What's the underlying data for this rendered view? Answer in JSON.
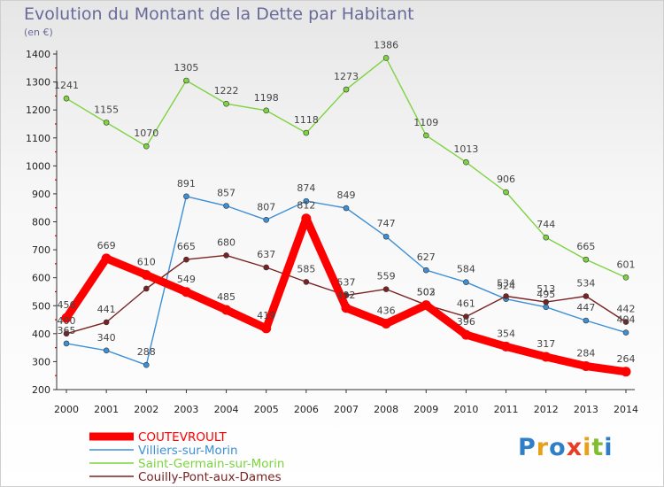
{
  "chart_data": {
    "type": "line",
    "title": "Evolution du Montant de la Dette par Habitant",
    "subtitle": "(en €)",
    "x": [
      "2000",
      "2001",
      "2002",
      "2003",
      "2004",
      "2005",
      "2006",
      "2007",
      "2008",
      "2009",
      "2010",
      "2011",
      "2012",
      "2013",
      "2014"
    ],
    "ylim": [
      200,
      1400
    ],
    "yticks": [
      200,
      300,
      400,
      500,
      600,
      700,
      800,
      900,
      1000,
      1100,
      1200,
      1300,
      1400
    ],
    "grid": false,
    "legend": "bottom-left",
    "series": [
      {
        "name": "COUTEVROULT",
        "color": "#ff0000",
        "emphasis": true,
        "values": [
          456,
          669,
          610,
          549,
          485,
          419,
          812,
          492,
          436,
          502,
          396,
          354,
          317,
          284,
          264
        ]
      },
      {
        "name": "Villiers-sur-Morin",
        "color": "#3d8fd6",
        "values": [
          365,
          340,
          288,
          891,
          857,
          807,
          874,
          849,
          747,
          627,
          584,
          524,
          495,
          447,
          404
        ]
      },
      {
        "name": "Saint-Germain-sur-Morin",
        "color": "#7ed340",
        "values": [
          1241,
          1155,
          1070,
          1305,
          1222,
          1198,
          1118,
          1273,
          1386,
          1109,
          1013,
          906,
          744,
          665,
          601
        ]
      },
      {
        "name": "Couilly-Pont-aux-Dames",
        "color": "#7a2222",
        "values": [
          400,
          441,
          561,
          665,
          680,
          637,
          585,
          537,
          559,
          503,
          461,
          534,
          513,
          534,
          442
        ]
      }
    ],
    "data_labels": {
      "COUTEVROULT": [
        "456",
        "669",
        "610",
        "549",
        "485",
        "419",
        "812",
        "492",
        "436",
        "502",
        "396",
        "354",
        "317",
        "284",
        "264"
      ],
      "Villiers-sur-Morin": [
        "365",
        "340",
        "288",
        "891",
        "857",
        "807",
        "874",
        "849",
        "747",
        "627",
        "584",
        "524",
        "495",
        "447",
        "404"
      ],
      "Saint-Germain-sur-Morin": [
        "1241",
        "1155",
        "1070",
        "1305",
        "1222",
        "1198",
        "1118",
        "1273",
        "1386",
        "1109",
        "1013",
        "906",
        "744",
        "665",
        "601"
      ],
      "Couilly-Pont-aux-Dames": [
        "400",
        "441",
        "",
        "665",
        "680",
        "637",
        "585",
        "537",
        "559",
        "503",
        "461",
        "534",
        "513",
        "534",
        "442"
      ]
    }
  },
  "branding": {
    "logo_letters": [
      "P",
      "r",
      "o",
      "x",
      "i",
      "t",
      "i"
    ],
    "logo_colors": [
      "#2f7fc8",
      "#e7a017",
      "#2f7fc8",
      "#e73d24",
      "#e7a017",
      "#7fbf2f",
      "#2f7fc8"
    ]
  }
}
